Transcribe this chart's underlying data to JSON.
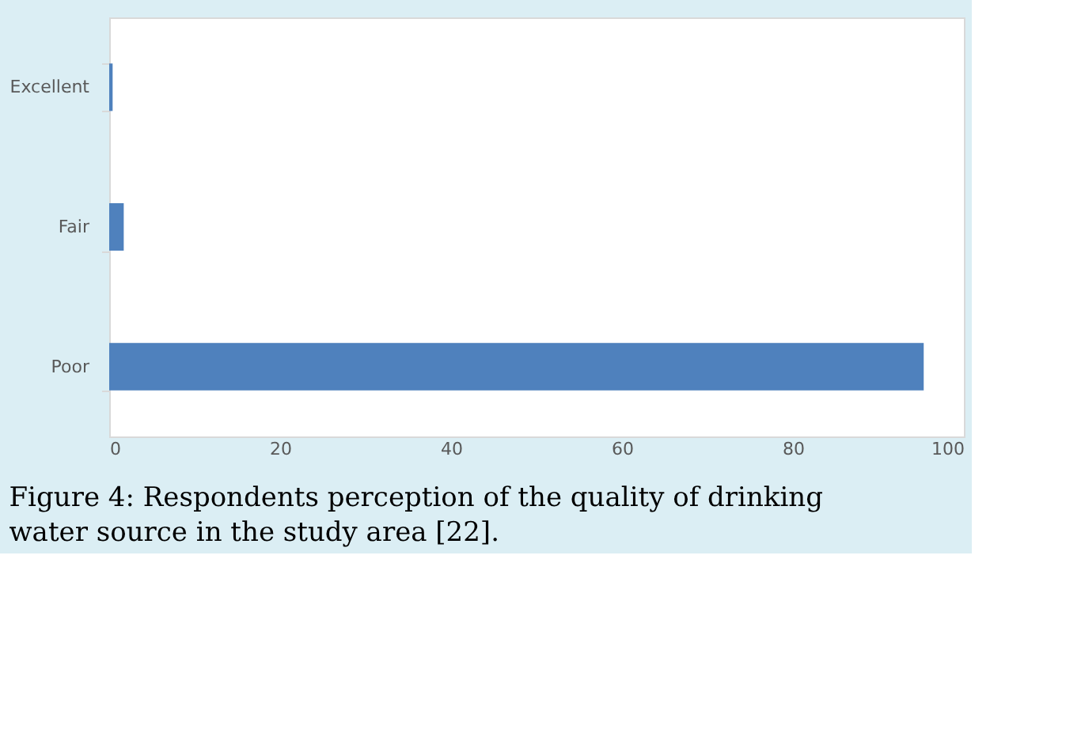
{
  "chart_data": {
    "type": "bar",
    "orientation": "horizontal",
    "title": "Figure 4: Respondents perception of the quality of drinking water source in the study area [22].",
    "categories": [
      "Excellent",
      "Fair",
      "Poor"
    ],
    "values": [
      0.4,
      1.7,
      95.3
    ],
    "color": "#4f81bd",
    "xlim": [
      0,
      100
    ],
    "xticks": [
      0,
      20,
      40,
      60,
      80,
      100
    ],
    "grid": false
  }
}
